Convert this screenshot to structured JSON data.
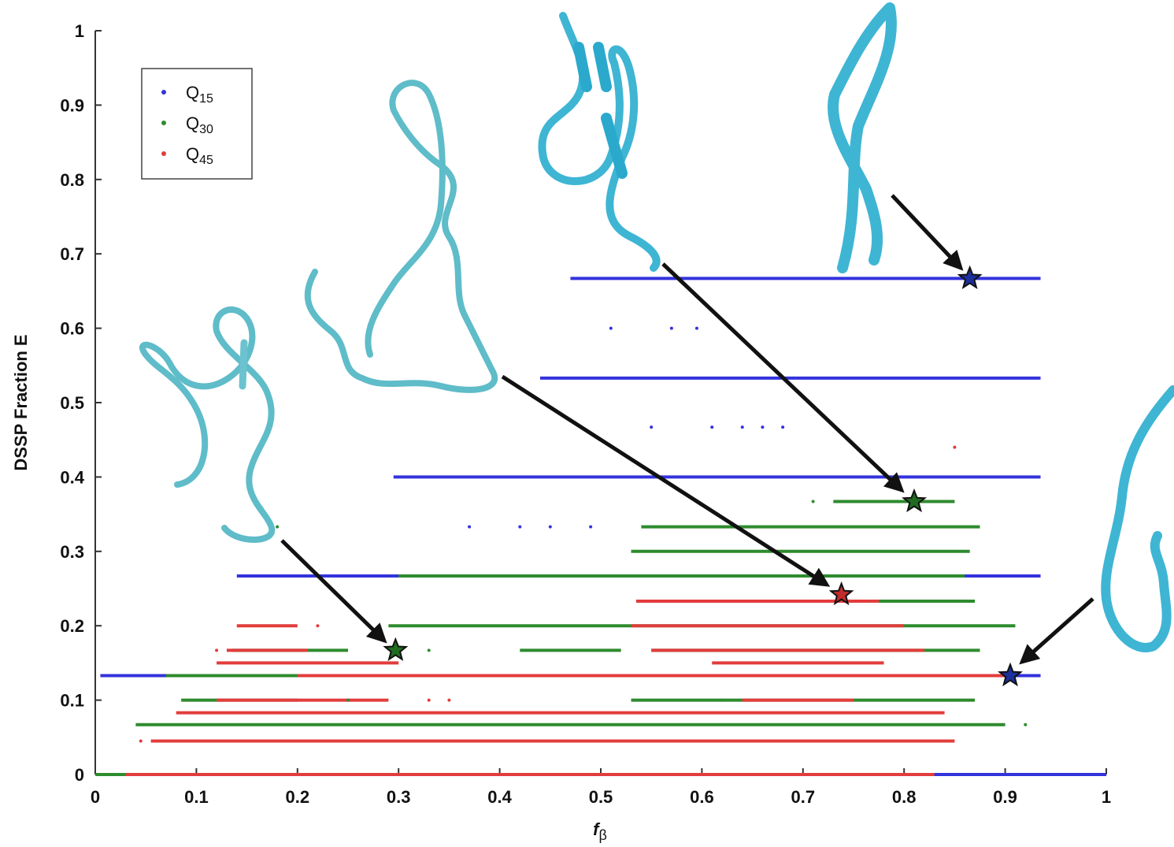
{
  "chart_data": {
    "type": "scatter",
    "title": "",
    "xlabel": "f",
    "xlabel_sub": "β",
    "ylabel": "DSSP Fraction E",
    "xlim": [
      0,
      1
    ],
    "ylim": [
      0,
      1
    ],
    "x_ticks": [
      "0",
      "0.1",
      "0.2",
      "0.3",
      "0.4",
      "0.5",
      "0.6",
      "0.7",
      "0.8",
      "0.9",
      "1"
    ],
    "y_ticks": [
      "0",
      "0.1",
      "0.2",
      "0.3",
      "0.4",
      "0.5",
      "0.6",
      "0.7",
      "0.8",
      "0.9",
      "1"
    ],
    "grid": false,
    "legend_position": "top-left",
    "series": [
      {
        "name": "Q",
        "name_sub": "15",
        "color": "#3333dd",
        "segments": [
          {
            "y": 0.667,
            "x0": 0.47,
            "x1": 0.935
          },
          {
            "y": 0.533,
            "x0": 0.44,
            "x1": 0.935
          },
          {
            "y": 0.4,
            "x0": 0.295,
            "x1": 0.935
          },
          {
            "y": 0.267,
            "x0": 0.14,
            "x1": 0.935
          },
          {
            "y": 0.133,
            "x0": 0.005,
            "x1": 0.935
          },
          {
            "y": 0.0,
            "x0": 0.0,
            "x1": 1.0
          }
        ],
        "points": [
          {
            "x": 0.51,
            "y": 0.6
          },
          {
            "x": 0.57,
            "y": 0.6
          },
          {
            "x": 0.595,
            "y": 0.6
          },
          {
            "x": 0.55,
            "y": 0.467
          },
          {
            "x": 0.61,
            "y": 0.467
          },
          {
            "x": 0.64,
            "y": 0.467
          },
          {
            "x": 0.66,
            "y": 0.467
          },
          {
            "x": 0.68,
            "y": 0.467
          },
          {
            "x": 0.37,
            "y": 0.333
          },
          {
            "x": 0.42,
            "y": 0.333
          },
          {
            "x": 0.45,
            "y": 0.333
          },
          {
            "x": 0.49,
            "y": 0.333
          }
        ]
      },
      {
        "name": "Q",
        "name_sub": "30",
        "color": "#2e8b2e",
        "segments": [
          {
            "y": 0.367,
            "x0": 0.73,
            "x1": 0.85
          },
          {
            "y": 0.333,
            "x0": 0.54,
            "x1": 0.875
          },
          {
            "y": 0.3,
            "x0": 0.53,
            "x1": 0.865
          },
          {
            "y": 0.267,
            "x0": 0.3,
            "x1": 0.86
          },
          {
            "y": 0.233,
            "x0": 0.535,
            "x1": 0.87
          },
          {
            "y": 0.2,
            "x0": 0.29,
            "x1": 0.91
          },
          {
            "y": 0.167,
            "x0": 0.135,
            "x1": 0.25
          },
          {
            "y": 0.167,
            "x0": 0.42,
            "x1": 0.52
          },
          {
            "y": 0.167,
            "x0": 0.55,
            "x1": 0.875
          },
          {
            "y": 0.133,
            "x0": 0.07,
            "x1": 0.87
          },
          {
            "y": 0.1,
            "x0": 0.085,
            "x1": 0.2
          },
          {
            "y": 0.1,
            "x0": 0.53,
            "x1": 0.87
          },
          {
            "y": 0.067,
            "x0": 0.04,
            "x1": 0.9
          },
          {
            "y": 0.0,
            "x0": 0.0,
            "x1": 0.03
          }
        ],
        "points": [
          {
            "x": 0.71,
            "y": 0.367
          },
          {
            "x": 0.18,
            "y": 0.333
          },
          {
            "x": 0.62,
            "y": 0.1
          },
          {
            "x": 0.25,
            "y": 0.1
          },
          {
            "x": 0.33,
            "y": 0.167
          },
          {
            "x": 0.92,
            "y": 0.067
          }
        ]
      },
      {
        "name": "Q",
        "name_sub": "45",
        "color": "#e23c3c",
        "segments": [
          {
            "y": 0.233,
            "x0": 0.535,
            "x1": 0.775
          },
          {
            "y": 0.2,
            "x0": 0.14,
            "x1": 0.2
          },
          {
            "y": 0.2,
            "x0": 0.53,
            "x1": 0.8
          },
          {
            "y": 0.167,
            "x0": 0.13,
            "x1": 0.21
          },
          {
            "y": 0.167,
            "x0": 0.55,
            "x1": 0.82
          },
          {
            "y": 0.15,
            "x0": 0.12,
            "x1": 0.3
          },
          {
            "y": 0.15,
            "x0": 0.61,
            "x1": 0.78
          },
          {
            "y": 0.133,
            "x0": 0.2,
            "x1": 0.9
          },
          {
            "y": 0.1,
            "x0": 0.12,
            "x1": 0.29
          },
          {
            "y": 0.1,
            "x0": 0.64,
            "x1": 0.75
          },
          {
            "y": 0.083,
            "x0": 0.08,
            "x1": 0.84
          },
          {
            "y": 0.045,
            "x0": 0.055,
            "x1": 0.85
          },
          {
            "y": 0.0,
            "x0": 0.03,
            "x1": 0.83
          }
        ],
        "points": [
          {
            "x": 0.22,
            "y": 0.2
          },
          {
            "x": 0.12,
            "y": 0.167
          },
          {
            "x": 0.33,
            "y": 0.1
          },
          {
            "x": 0.35,
            "y": 0.1
          },
          {
            "x": 0.62,
            "y": 0.133
          },
          {
            "x": 0.66,
            "y": 0.233
          },
          {
            "x": 0.045,
            "y": 0.045
          },
          {
            "x": 0.85,
            "y": 0.44
          }
        ]
      }
    ],
    "highlighted_points": [
      {
        "x": 0.865,
        "y": 0.667,
        "color": "#1d2f9a"
      },
      {
        "x": 0.81,
        "y": 0.367,
        "color": "#1f6b1f"
      },
      {
        "x": 0.738,
        "y": 0.242,
        "color": "#c02b2b"
      },
      {
        "x": 0.297,
        "y": 0.167,
        "color": "#1f6b1f"
      },
      {
        "x": 0.905,
        "y": 0.133,
        "color": "#1d2f9a"
      }
    ]
  }
}
